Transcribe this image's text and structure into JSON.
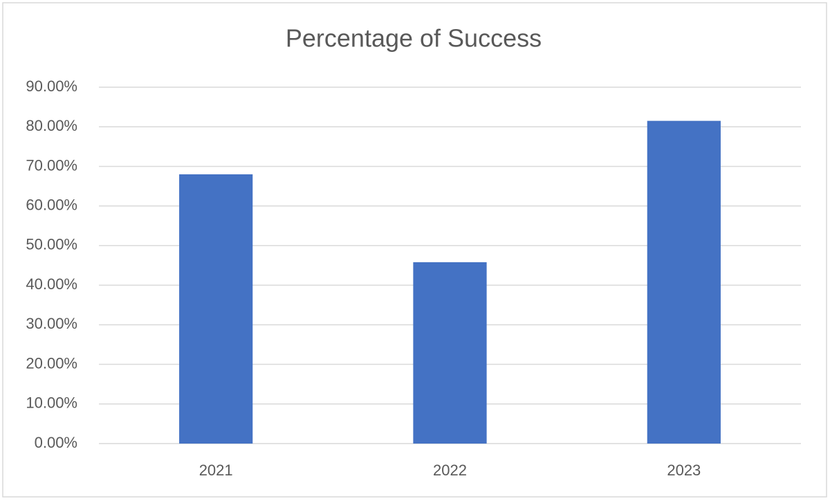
{
  "chart_data": {
    "type": "bar",
    "title": "Percentage of Success",
    "categories": [
      "2021",
      "2022",
      "2023"
    ],
    "values": [
      68,
      45.8,
      81.5
    ],
    "color": "#4472c4",
    "ylim": [
      0,
      90
    ],
    "yticks": [
      {
        "value": 0,
        "label": "0.00%"
      },
      {
        "value": 10,
        "label": "10.00%"
      },
      {
        "value": 20,
        "label": "20.00%"
      },
      {
        "value": 30,
        "label": "30.00%"
      },
      {
        "value": 40,
        "label": "40.00%"
      },
      {
        "value": 50,
        "label": "50.00%"
      },
      {
        "value": 60,
        "label": "60.00%"
      },
      {
        "value": 70,
        "label": "70.00%"
      },
      {
        "value": 80,
        "label": "80.00%"
      },
      {
        "value": 90,
        "label": "90.00%"
      }
    ],
    "grid": true
  }
}
